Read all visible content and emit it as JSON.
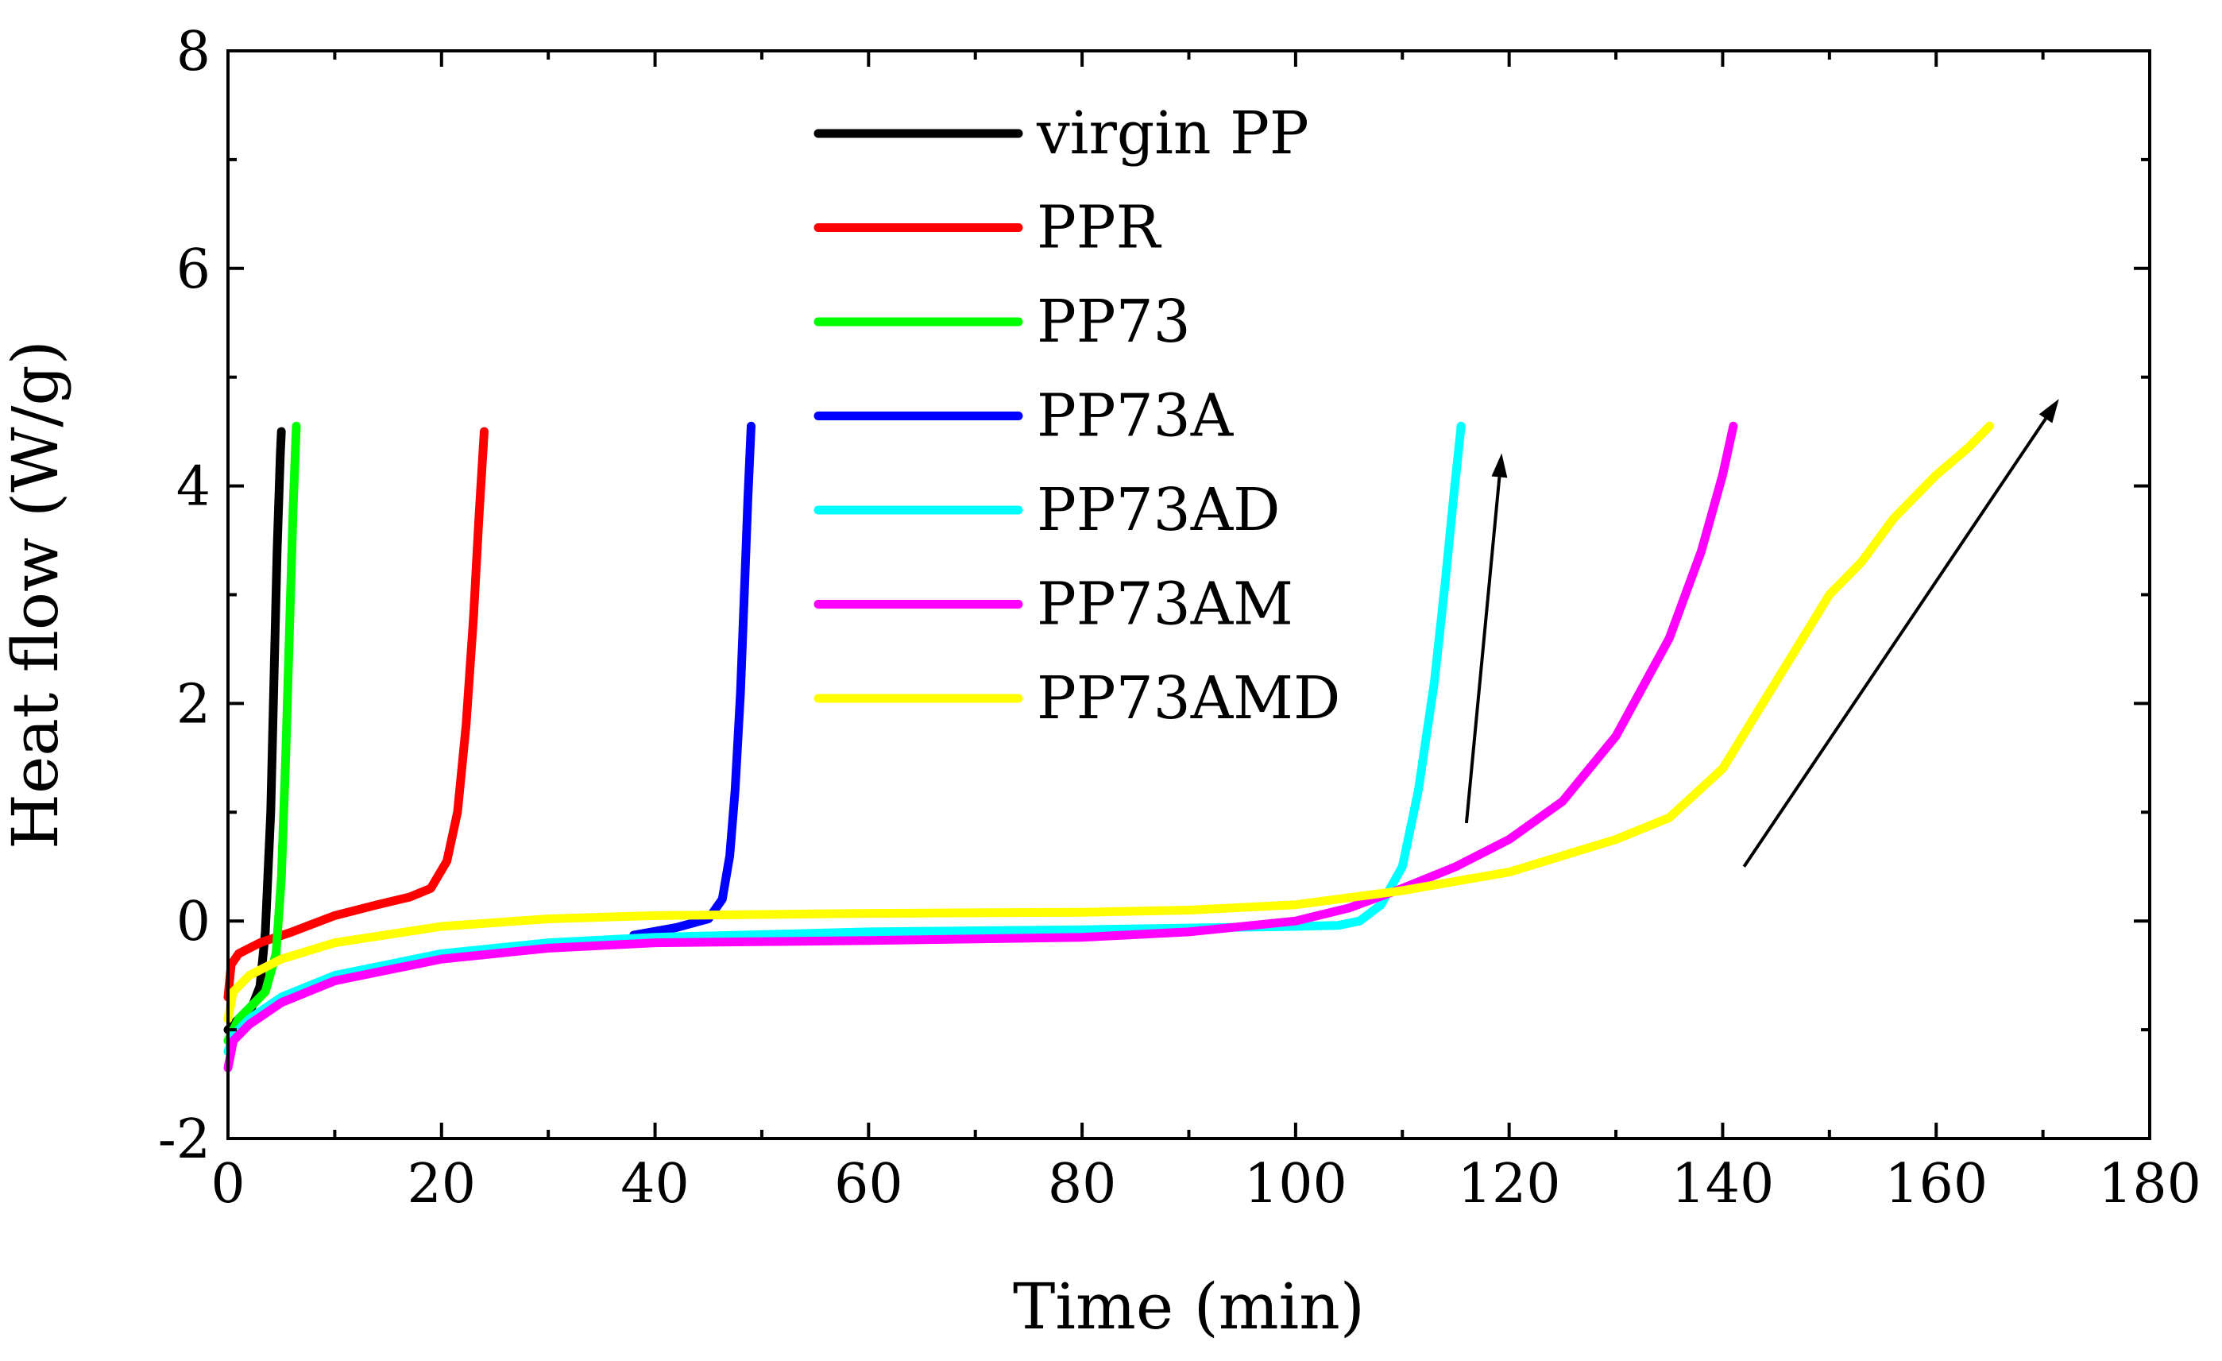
{
  "chart_data": {
    "type": "line",
    "title": "",
    "xlabel": "Time (min)",
    "ylabel": "Heat flow (W/g)",
    "xlim": [
      0,
      180
    ],
    "ylim": [
      -2,
      8
    ],
    "xticks": [
      0,
      20,
      40,
      60,
      80,
      100,
      120,
      140,
      160,
      180
    ],
    "yticks": [
      -2,
      0,
      2,
      4,
      6,
      8
    ],
    "xtick_labels": [
      "0",
      "20",
      "40",
      "60",
      "80",
      "100",
      "120",
      "140",
      "160",
      "180"
    ],
    "ytick_labels": [
      "-2",
      "0",
      "2",
      "4",
      "6",
      "8"
    ],
    "legend_position": "top-center",
    "series": [
      {
        "name": "virgin PP",
        "color": "#000000",
        "x": [
          0,
          0.5,
          1,
          2,
          3,
          3.5,
          4,
          4.3,
          4.6,
          4.9,
          5.0
        ],
        "y": [
          -1.0,
          -0.95,
          -0.9,
          -0.85,
          -0.6,
          -0.1,
          1.0,
          2.2,
          3.4,
          4.3,
          4.5
        ]
      },
      {
        "name": "PPR",
        "color": "#ff0000",
        "x": [
          0,
          0.3,
          1,
          3,
          6,
          10,
          14,
          17,
          19,
          20.5,
          21.5,
          22.3,
          23,
          23.5,
          24
        ],
        "y": [
          -0.7,
          -0.4,
          -0.3,
          -0.2,
          -0.1,
          0.05,
          0.15,
          0.22,
          0.3,
          0.55,
          1.0,
          1.8,
          2.8,
          3.7,
          4.5
        ]
      },
      {
        "name": "PP73",
        "color": "#00ff00",
        "x": [
          0,
          1,
          2,
          3.5,
          4.5,
          5,
          5.4,
          5.8,
          6.1,
          6.4
        ],
        "y": [
          -1.1,
          -0.9,
          -0.8,
          -0.65,
          -0.3,
          0.4,
          1.5,
          2.8,
          3.8,
          4.55
        ]
      },
      {
        "name": "PP73A",
        "color": "#0000ff",
        "x": [
          38,
          42,
          45,
          46.3,
          47,
          47.5,
          48,
          48.4,
          48.7,
          49.0
        ],
        "y": [
          -0.13,
          -0.06,
          0.02,
          0.2,
          0.6,
          1.2,
          2.1,
          3.1,
          3.9,
          4.55
        ]
      },
      {
        "name": "PP73AD",
        "color": "#00ffff",
        "x": [
          0,
          0.5,
          2,
          5,
          10,
          20,
          30,
          40,
          60,
          80,
          100,
          104,
          106,
          108,
          110,
          111.5,
          113,
          114,
          114.8,
          115.5
        ],
        "y": [
          -1.2,
          -1.05,
          -0.9,
          -0.7,
          -0.5,
          -0.3,
          -0.2,
          -0.15,
          -0.1,
          -0.08,
          -0.05,
          -0.04,
          0.0,
          0.15,
          0.5,
          1.2,
          2.2,
          3.1,
          3.9,
          4.55
        ]
      },
      {
        "name": "PP73AM",
        "color": "#ff00ff",
        "x": [
          0,
          0.5,
          2,
          5,
          10,
          20,
          30,
          40,
          60,
          80,
          90,
          100,
          105,
          110,
          115,
          120,
          125,
          130,
          135,
          138,
          140,
          141
        ],
        "y": [
          -1.35,
          -1.1,
          -0.95,
          -0.75,
          -0.55,
          -0.35,
          -0.25,
          -0.2,
          -0.18,
          -0.15,
          -0.1,
          0.0,
          0.12,
          0.3,
          0.5,
          0.75,
          1.1,
          1.7,
          2.6,
          3.4,
          4.1,
          4.55
        ]
      },
      {
        "name": "PP73AMD",
        "color": "#ffff00",
        "x": [
          0,
          0.5,
          2,
          5,
          10,
          20,
          30,
          40,
          60,
          80,
          90,
          100,
          110,
          120,
          130,
          135,
          140,
          145,
          150,
          153,
          156,
          160,
          163,
          165
        ],
        "y": [
          -0.9,
          -0.65,
          -0.5,
          -0.35,
          -0.2,
          -0.05,
          0.02,
          0.05,
          0.07,
          0.08,
          0.1,
          0.15,
          0.28,
          0.45,
          0.75,
          0.95,
          1.4,
          2.2,
          3.0,
          3.3,
          3.7,
          4.1,
          4.35,
          4.55
        ]
      }
    ],
    "annotations": [
      {
        "type": "arrow",
        "from": [
          116,
          0.9
        ],
        "to": [
          119.3,
          4.3
        ]
      },
      {
        "type": "arrow",
        "from": [
          142,
          0.5
        ],
        "to": [
          171.5,
          4.8
        ]
      }
    ]
  }
}
